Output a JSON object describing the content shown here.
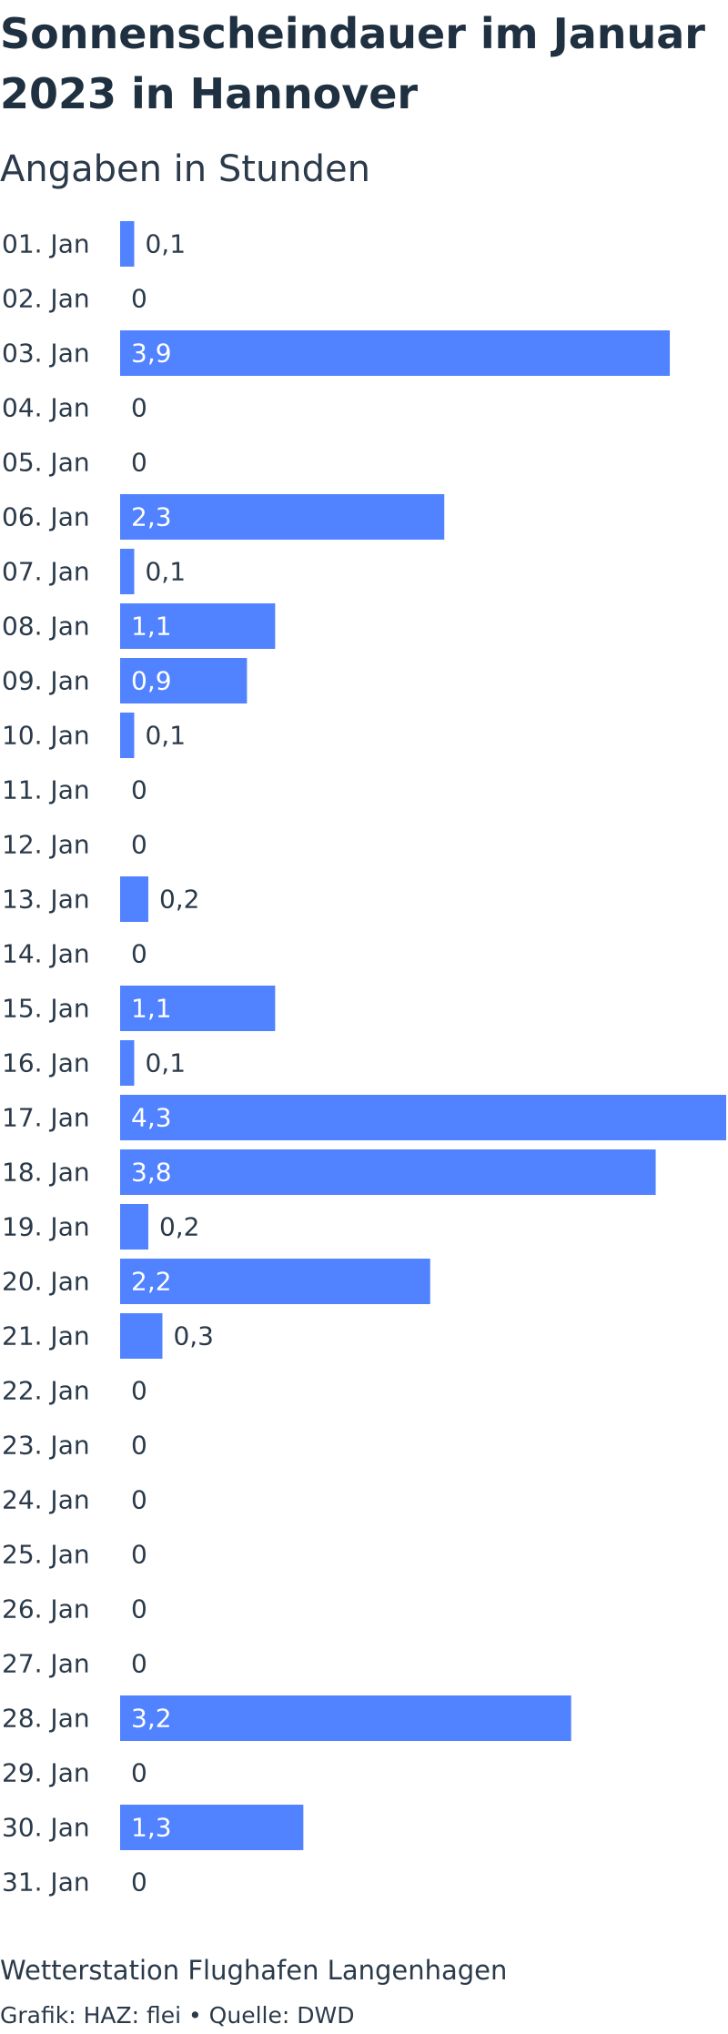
{
  "title": "Sonnenscheindauer im Januar 2023 in Hannover",
  "subtitle": "Angaben in Stunden",
  "colors": {
    "bar": "#5182ff",
    "text": "#2b3a4a",
    "inside_label": "#ffffff"
  },
  "chart_data": {
    "type": "bar",
    "orientation": "horizontal",
    "title": "Sonnenscheindauer im Januar 2023 in Hannover",
    "subtitle": "Angaben in Stunden",
    "xlim": [
      0,
      4.3
    ],
    "grid": false,
    "categories": [
      "01. Jan",
      "02. Jan",
      "03. Jan",
      "04. Jan",
      "05. Jan",
      "06. Jan",
      "07. Jan",
      "08. Jan",
      "09. Jan",
      "10. Jan",
      "11. Jan",
      "12. Jan",
      "13. Jan",
      "14. Jan",
      "15. Jan",
      "16. Jan",
      "17. Jan",
      "18. Jan",
      "19. Jan",
      "20. Jan",
      "21. Jan",
      "22. Jan",
      "23. Jan",
      "24. Jan",
      "25. Jan",
      "26. Jan",
      "27. Jan",
      "28. Jan",
      "29. Jan",
      "30. Jan",
      "31. Jan"
    ],
    "values": [
      0.1,
      0,
      3.9,
      0,
      0,
      2.3,
      0.1,
      1.1,
      0.9,
      0.1,
      0,
      0,
      0.2,
      0,
      1.1,
      0.1,
      4.3,
      3.8,
      0.2,
      2.2,
      0.3,
      0,
      0,
      0,
      0,
      0,
      0,
      3.2,
      0,
      1.3,
      0
    ],
    "value_labels": [
      "0,1",
      "0",
      "3,9",
      "0",
      "0",
      "2,3",
      "0,1",
      "1,1",
      "0,9",
      "0,1",
      "0",
      "0",
      "0,2",
      "0",
      "1,1",
      "0,1",
      "4,3",
      "3,8",
      "0,2",
      "2,2",
      "0,3",
      "0",
      "0",
      "0",
      "0",
      "0",
      "0",
      "3,2",
      "0",
      "1,3",
      "0"
    ]
  },
  "footer": {
    "note": "Wetterstation Flughafen Langenhagen",
    "credit": "Grafik: HAZ: flei • Quelle: DWD"
  }
}
